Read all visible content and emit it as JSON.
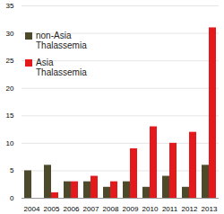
{
  "chart_data": {
    "type": "bar",
    "categories": [
      "2004",
      "2005",
      "2006",
      "2007",
      "2008",
      "2009",
      "2010",
      "2011",
      "2012",
      "2013"
    ],
    "series": [
      {
        "name": "non-Asia Thalassemia",
        "color": "#4d4a2c",
        "values": [
          5,
          6,
          3,
          3,
          2,
          3,
          2,
          4,
          2,
          6
        ]
      },
      {
        "name": "Asia Thalassemia",
        "color": "#e3191c",
        "values": [
          0,
          1,
          3,
          4,
          3,
          9,
          13,
          10,
          12,
          31
        ]
      }
    ],
    "ylim": [
      0,
      35
    ],
    "yticks": [
      0,
      5,
      10,
      15,
      20,
      25,
      30,
      35
    ],
    "grid": true,
    "legend": "upper left"
  }
}
